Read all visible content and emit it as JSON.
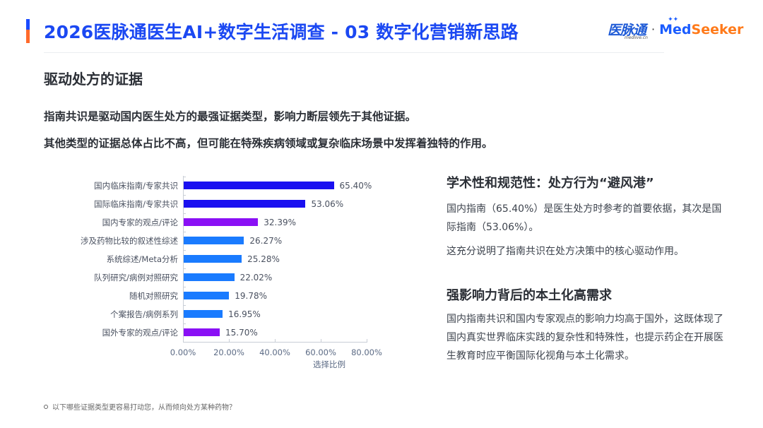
{
  "header": {
    "title": "2026医脉通医生AI+数字生活调查 - 03 数字化营销新思路",
    "accent_colors": {
      "top": "#1a4bff",
      "bottom": "#ff6a2b"
    },
    "logo": {
      "cn_name": "医脉通",
      "cn_sub": "medlive.cn",
      "separator": "·",
      "brand_part1": "Med",
      "brand_part2": "Seeker",
      "sparkle": "✦✦"
    }
  },
  "section": {
    "title": "驱动处方的证据",
    "lead_1": "指南共识是驱动国内医生处方的最强证据类型，影响力断层领先于其他证据。",
    "lead_2": "其他类型的证据总体占比不高，但可能在特殊疾病领域或复杂临床场景中发挥着独特的作用。"
  },
  "chart_data": {
    "type": "bar",
    "orientation": "horizontal",
    "title": "",
    "xlabel": "选择比例",
    "ylabel": "",
    "xlim": [
      0,
      80
    ],
    "x_ticks": [
      "0.00%",
      "20.00%",
      "40.00%",
      "60.00%",
      "80.00%"
    ],
    "grid": false,
    "legend": "none",
    "categories": [
      "国内临床指南/专家共识",
      "国际临床指南/专家共识",
      "国内专家的观点/评论",
      "涉及药物比较的叙述性综述",
      "系统综述/Meta分析",
      "队列研究/病例对照研究",
      "随机对照研究",
      "个案报告/病例系列",
      "国外专家的观点/评论"
    ],
    "values": [
      65.4,
      53.06,
      32.39,
      26.27,
      25.28,
      22.02,
      19.78,
      16.95,
      15.7
    ],
    "value_labels": [
      "65.40%",
      "53.06%",
      "32.39%",
      "26.27%",
      "25.28%",
      "22.02%",
      "19.78%",
      "16.95%",
      "15.70%"
    ],
    "colors": [
      "#1a10f0",
      "#1a10f0",
      "#8a10f5",
      "#1a7bff",
      "#1a7bff",
      "#1a7bff",
      "#1a7bff",
      "#1a7bff",
      "#8a10f5"
    ]
  },
  "side": {
    "heading_1": "学术性和规范性：处方行为“避风港”",
    "para_1": "国内指南（65.40%）是医生处方时参考的首要依据，其次是国际指南（53.06%）。",
    "para_2": "这充分说明了指南共识在处方决策中的核心驱动作用。",
    "heading_2": "强影响力背后的本土化高需求",
    "para_3": "国内指南共识和国内专家观点的影响力均高于国外，这既体现了国内真实世界临床实践的复杂性和特殊性，也提示药企在开展医生教育时应平衡国际化视角与本土化需求。"
  },
  "footnote": {
    "text": "以下哪些证据类型更容易打动您，从而倾向处方某种药物？"
  }
}
